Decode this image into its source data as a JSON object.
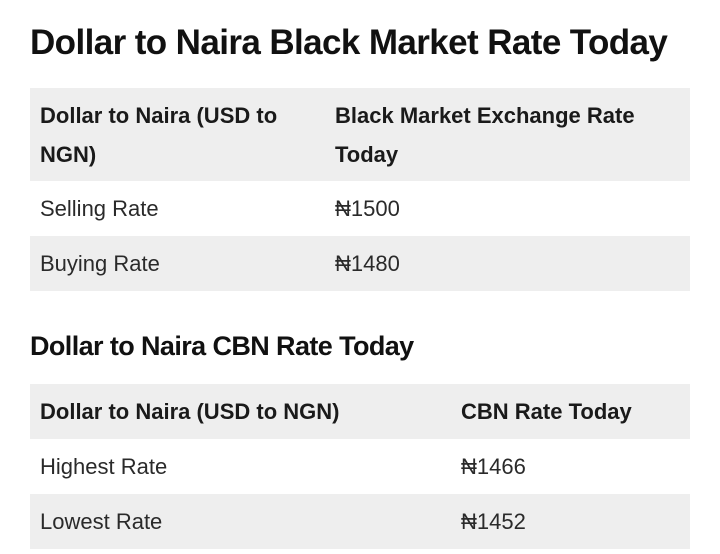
{
  "black_market": {
    "title": "Dollar to Naira Black Market Rate Today",
    "columns": [
      "Dollar to Naira (USD to NGN)",
      "Black Market Exchange Rate Today"
    ],
    "rows": [
      {
        "label": "Selling Rate",
        "value": "₦1500"
      },
      {
        "label": "Buying Rate",
        "value": "₦1480"
      }
    ]
  },
  "cbn": {
    "title": "Dollar to Naira CBN Rate Today",
    "columns": [
      "Dollar to Naira (USD to NGN)",
      "CBN Rate Today"
    ],
    "rows": [
      {
        "label": "Highest Rate",
        "value": "₦1466"
      },
      {
        "label": "Lowest Rate",
        "value": "₦1452"
      }
    ]
  }
}
